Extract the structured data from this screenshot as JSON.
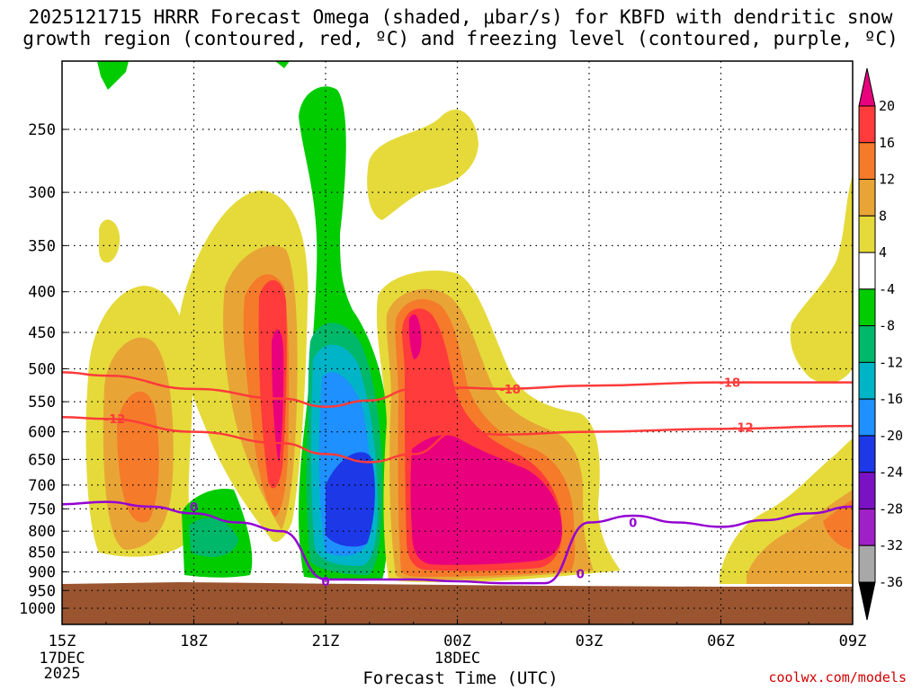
{
  "chart_data": {
    "type": "contour",
    "title_line_1": "2025121715 HRRR Forecast Omega (shaded, μbar/s) for KBFD with dendritic snow",
    "title_line_2": "growth region (contoured, red, ºC) and freezing level (contoured, purple, ºC)",
    "xlabel": "Forecast Time (UTC)",
    "x_ticks": [
      "15Z",
      "18Z",
      "21Z",
      "00Z",
      "03Z",
      "06Z",
      "09Z"
    ],
    "x_date_labels": [
      {
        "tick": "15Z",
        "lines": [
          "17DEC",
          "2025"
        ]
      },
      {
        "tick": "00Z",
        "lines": [
          "18DEC"
        ]
      }
    ],
    "y_ticks": [
      250,
      300,
      350,
      400,
      450,
      500,
      550,
      600,
      650,
      700,
      750,
      800,
      850,
      900,
      950,
      1000
    ],
    "y_unit": "hPa",
    "y_scale": "log-pressure (inverted)",
    "ylim": [
      1000,
      200
    ],
    "colorbar": {
      "labels": [
        20,
        16,
        12,
        8,
        4,
        -4,
        -8,
        -12,
        -16,
        -20,
        -24,
        -28,
        -32,
        -36
      ],
      "levels": [
        {
          "from": 20,
          "to": null,
          "color": "#e8007d"
        },
        {
          "from": 16,
          "to": 20,
          "color": "#ff3b3b"
        },
        {
          "from": 12,
          "to": 16,
          "color": "#f57a2a"
        },
        {
          "from": 8,
          "to": 12,
          "color": "#e8a536"
        },
        {
          "from": 4,
          "to": 8,
          "color": "#e5da3a"
        },
        {
          "from": -4,
          "to": 4,
          "color": "#ffffff"
        },
        {
          "from": -8,
          "to": -4,
          "color": "#00cc00"
        },
        {
          "from": -12,
          "to": -8,
          "color": "#00b86a"
        },
        {
          "from": -16,
          "to": -12,
          "color": "#00b4c8"
        },
        {
          "from": -20,
          "to": -16,
          "color": "#1e90ff"
        },
        {
          "from": -24,
          "to": -20,
          "color": "#1d38e6"
        },
        {
          "from": -28,
          "to": -24,
          "color": "#7a12c4"
        },
        {
          "from": -32,
          "to": -28,
          "color": "#a020c8"
        },
        {
          "from": -36,
          "to": -32,
          "color": "#a8a8a8"
        },
        {
          "from": null,
          "to": -36,
          "color": "#000000"
        }
      ]
    },
    "contour_labels": {
      "dgz_upper": "-18",
      "dgz_lower": "-12",
      "freezing": "0"
    },
    "contours": {
      "dgz_minus12_hPa": {
        "x": [
          "15Z",
          "16Z",
          "18Z",
          "20Z",
          "21Z",
          "22Z",
          "23Z",
          "00Z",
          "01Z",
          "03Z",
          "06Z",
          "09Z"
        ],
        "y": [
          575,
          578,
          600,
          620,
          640,
          655,
          640,
          600,
          605,
          600,
          595,
          590
        ]
      },
      "dgz_minus18_hPa": {
        "x": [
          "15Z",
          "16Z",
          "18Z",
          "20Z",
          "21Z",
          "22Z",
          "23Z",
          "00Z",
          "01Z",
          "03Z",
          "06Z",
          "09Z"
        ],
        "y": [
          505,
          510,
          530,
          545,
          558,
          548,
          530,
          528,
          530,
          525,
          520,
          520
        ]
      },
      "freezing_0C_hPa": {
        "x": [
          "15Z",
          "16Z",
          "17Z",
          "18Z",
          "19Z",
          "20Z",
          "21Z",
          "22Z",
          "23Z",
          "00Z",
          "01Z",
          "02Z",
          "03Z",
          "04Z",
          "05Z",
          "06Z",
          "07Z",
          "08Z",
          "09Z"
        ],
        "y": [
          740,
          735,
          745,
          760,
          780,
          800,
          920,
          920,
          920,
          925,
          930,
          930,
          780,
          765,
          780,
          790,
          775,
          760,
          745
        ]
      }
    },
    "terrain_color": "#9a5530",
    "grid": true,
    "credit": "coolwx.com/models"
  }
}
